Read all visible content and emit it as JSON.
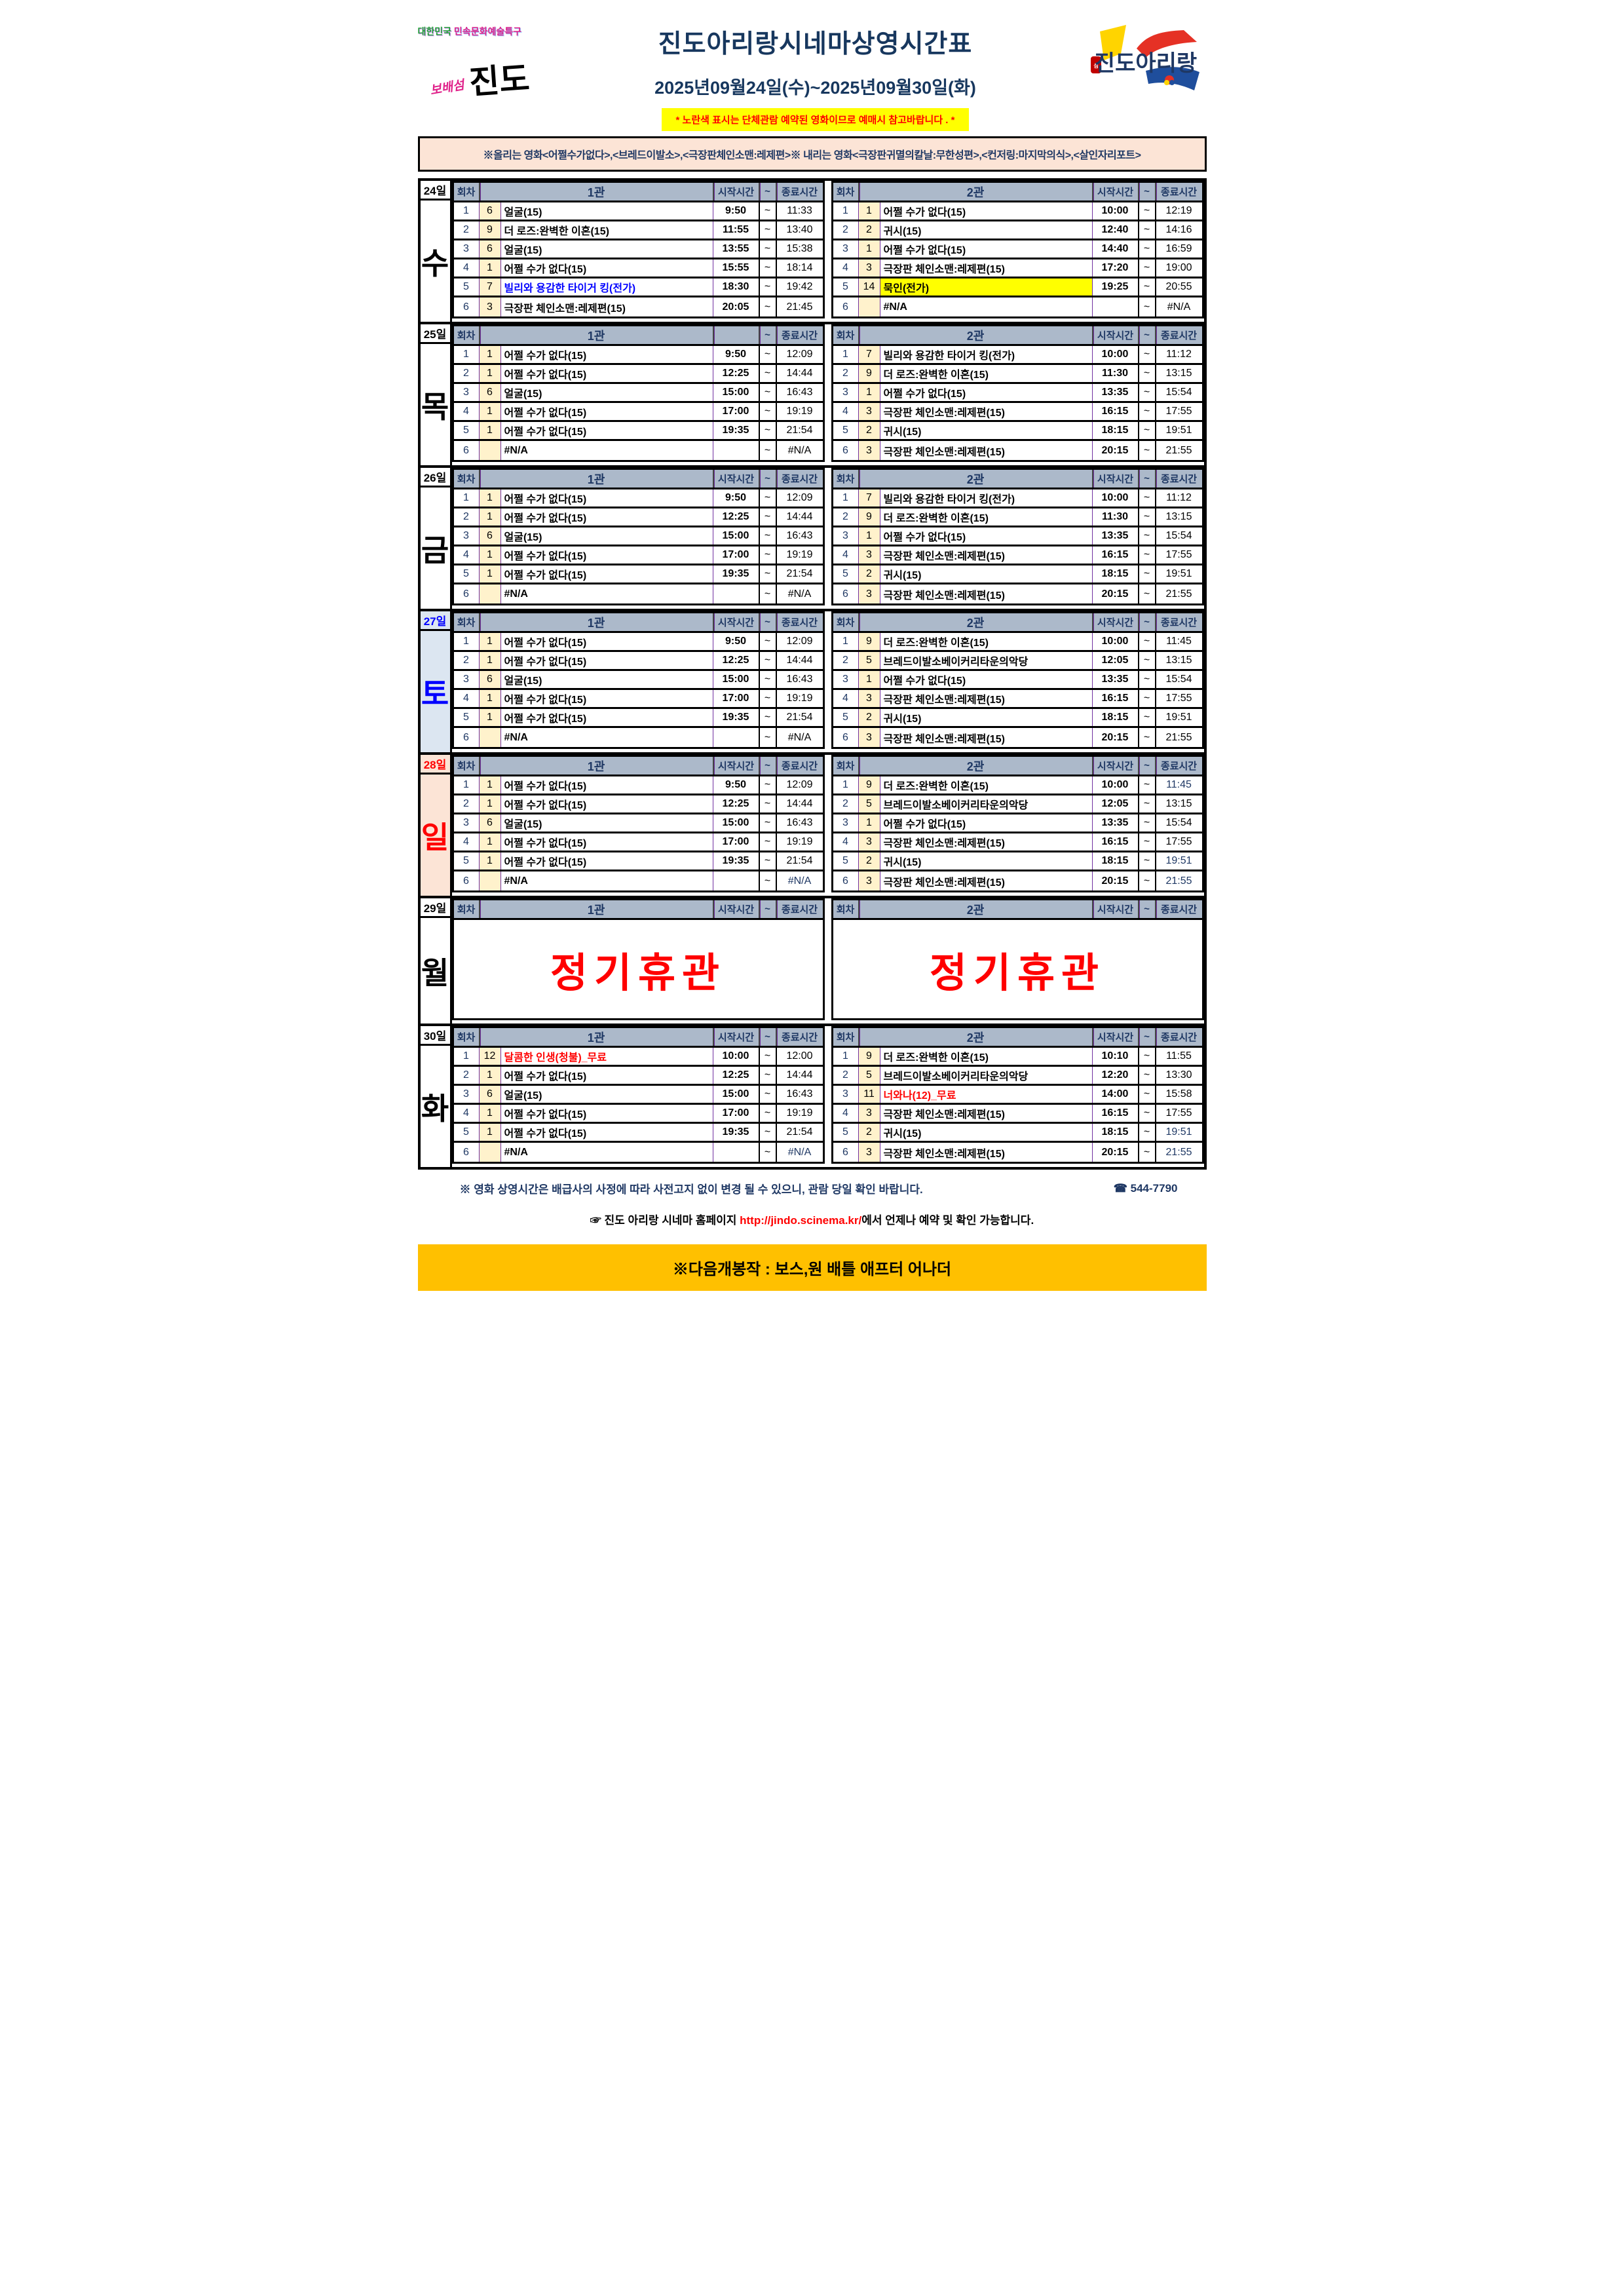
{
  "header": {
    "left_logo": {
      "line1_part1": "대한민국",
      "line1_part2": "민속문화예술특구",
      "line2_part1": "보배섬",
      "line2_part2": "진도"
    },
    "title": "진도아리랑시네마상영시간표",
    "date_range": "2025년09월24일(수)~2025년09월30일(화)",
    "yellow_notice": "* 노란색 표시는 단체관람 예약된 영화이므로 예매시 참고바랍니다 . *",
    "right_logo_text": "진도아리랑",
    "right_logo_seal": "보배섬"
  },
  "movie_notice": "※올리는 영화<어쩔수가없다>,<브레드이발소>,<극장판체인소맨:레제편>※ 내리는 영화<극장판귀멸의칼날:무한성편>,<컨저링:마지막의식>,<살인자리포트>",
  "table": {
    "col_headers": {
      "round": "회차",
      "start": "시작시간",
      "tilde": "~",
      "end": "종료시간"
    },
    "closure_text": "정기휴관",
    "days": [
      {
        "date": "24일",
        "weekday": "수",
        "date_style": "",
        "closed": false,
        "theaters": [
          {
            "name": "1관",
            "start_header": "시작시간",
            "rows": [
              {
                "no": "1",
                "code": "6",
                "title": "얼굴(15)",
                "start": "9:50",
                "end": "11:33"
              },
              {
                "no": "2",
                "code": "9",
                "title": "더 로즈:완벽한 이혼(15)",
                "start": "11:55",
                "end": "13:40"
              },
              {
                "no": "3",
                "code": "6",
                "title": "얼굴(15)",
                "start": "13:55",
                "end": "15:38"
              },
              {
                "no": "4",
                "code": "1",
                "title": "어쩔 수가 없다(15)",
                "start": "15:55",
                "end": "18:14"
              },
              {
                "no": "5",
                "code": "7",
                "title": "빌리와 용감한 타이거 킹(전가)",
                "title_style": "blue",
                "start": "18:30",
                "end": "19:42"
              },
              {
                "no": "6",
                "code": "3",
                "title": "극장판 체인소맨:레제편(15)",
                "start": "20:05",
                "end": "21:45"
              }
            ]
          },
          {
            "name": "2관",
            "start_header": "시작시간",
            "rows": [
              {
                "no": "1",
                "code": "1",
                "title": "어쩔 수가 없다(15)",
                "start": "10:00",
                "end": "12:19"
              },
              {
                "no": "2",
                "code": "2",
                "title": "귀시(15)",
                "start": "12:40",
                "end": "14:16"
              },
              {
                "no": "3",
                "code": "1",
                "title": "어쩔 수가 없다(15)",
                "start": "14:40",
                "end": "16:59"
              },
              {
                "no": "4",
                "code": "3",
                "title": "극장판 체인소맨:레제편(15)",
                "start": "17:20",
                "end": "19:00"
              },
              {
                "no": "5",
                "code": "14",
                "title": "묵인(전가)",
                "title_style": "yellowbg",
                "start": "19:25",
                "end": "20:55"
              },
              {
                "no": "6",
                "code": "",
                "title": "#N/A",
                "start": "",
                "end": "#N/A"
              }
            ]
          }
        ]
      },
      {
        "date": "25일",
        "weekday": "목",
        "date_style": "",
        "closed": false,
        "theaters": [
          {
            "name": "1관",
            "start_header": "",
            "rows": [
              {
                "no": "1",
                "code": "1",
                "title": "어쩔 수가 없다(15)",
                "start": "9:50",
                "end": "12:09"
              },
              {
                "no": "2",
                "code": "1",
                "title": "어쩔 수가 없다(15)",
                "start": "12:25",
                "end": "14:44"
              },
              {
                "no": "3",
                "code": "6",
                "title": "얼굴(15)",
                "start": "15:00",
                "end": "16:43"
              },
              {
                "no": "4",
                "code": "1",
                "title": "어쩔 수가 없다(15)",
                "start": "17:00",
                "end": "19:19"
              },
              {
                "no": "5",
                "code": "1",
                "title": "어쩔 수가 없다(15)",
                "start": "19:35",
                "end": "21:54"
              },
              {
                "no": "6",
                "code": "",
                "title": "#N/A",
                "start": "",
                "end": "#N/A"
              }
            ]
          },
          {
            "name": "2관",
            "start_header": "시작시간",
            "rows": [
              {
                "no": "1",
                "code": "7",
                "title": "빌리와 용감한 타이거 킹(전가)",
                "start": "10:00",
                "end": "11:12"
              },
              {
                "no": "2",
                "code": "9",
                "title": "더 로즈:완벽한 이혼(15)",
                "start": "11:30",
                "end": "13:15"
              },
              {
                "no": "3",
                "code": "1",
                "title": "어쩔 수가 없다(15)",
                "start": "13:35",
                "end": "15:54"
              },
              {
                "no": "4",
                "code": "3",
                "title": "극장판 체인소맨:레제편(15)",
                "start": "16:15",
                "end": "17:55"
              },
              {
                "no": "5",
                "code": "2",
                "title": "귀시(15)",
                "start": "18:15",
                "end": "19:51"
              },
              {
                "no": "6",
                "code": "3",
                "title": "극장판 체인소맨:레제편(15)",
                "start": "20:15",
                "end": "21:55"
              }
            ]
          }
        ]
      },
      {
        "date": "26일",
        "weekday": "금",
        "date_style": "",
        "closed": false,
        "theaters": [
          {
            "name": "1관",
            "start_header": "시작시간",
            "rows": [
              {
                "no": "1",
                "code": "1",
                "title": "어쩔 수가 없다(15)",
                "start": "9:50",
                "end": "12:09"
              },
              {
                "no": "2",
                "code": "1",
                "title": "어쩔 수가 없다(15)",
                "start": "12:25",
                "end": "14:44"
              },
              {
                "no": "3",
                "code": "6",
                "title": "얼굴(15)",
                "start": "15:00",
                "end": "16:43"
              },
              {
                "no": "4",
                "code": "1",
                "title": "어쩔 수가 없다(15)",
                "start": "17:00",
                "end": "19:19"
              },
              {
                "no": "5",
                "code": "1",
                "title": "어쩔 수가 없다(15)",
                "start": "19:35",
                "end": "21:54"
              },
              {
                "no": "6",
                "code": "",
                "title": "#N/A",
                "start": "",
                "end": "#N/A"
              }
            ]
          },
          {
            "name": "2관",
            "start_header": "시작시간",
            "rows": [
              {
                "no": "1",
                "code": "7",
                "title": "빌리와 용감한 타이거 킹(전가)",
                "start": "10:00",
                "end": "11:12"
              },
              {
                "no": "2",
                "code": "9",
                "title": "더 로즈:완벽한 이혼(15)",
                "start": "11:30",
                "end": "13:15"
              },
              {
                "no": "3",
                "code": "1",
                "title": "어쩔 수가 없다(15)",
                "start": "13:35",
                "end": "15:54"
              },
              {
                "no": "4",
                "code": "3",
                "title": "극장판 체인소맨:레제편(15)",
                "start": "16:15",
                "end": "17:55"
              },
              {
                "no": "5",
                "code": "2",
                "title": "귀시(15)",
                "start": "18:15",
                "end": "19:51"
              },
              {
                "no": "6",
                "code": "3",
                "title": "극장판 체인소맨:레제편(15)",
                "start": "20:15",
                "end": "21:55"
              }
            ]
          }
        ]
      },
      {
        "date": "27일",
        "weekday": "토",
        "date_style": "sat",
        "closed": false,
        "theaters": [
          {
            "name": "1관",
            "start_header": "시작시간",
            "rows": [
              {
                "no": "1",
                "code": "1",
                "title": "어쩔 수가 없다(15)",
                "start": "9:50",
                "end": "12:09"
              },
              {
                "no": "2",
                "code": "1",
                "title": "어쩔 수가 없다(15)",
                "start": "12:25",
                "end": "14:44"
              },
              {
                "no": "3",
                "code": "6",
                "title": "얼굴(15)",
                "start": "15:00",
                "end": "16:43"
              },
              {
                "no": "4",
                "code": "1",
                "title": "어쩔 수가 없다(15)",
                "start": "17:00",
                "end": "19:19"
              },
              {
                "no": "5",
                "code": "1",
                "title": "어쩔 수가 없다(15)",
                "start": "19:35",
                "end": "21:54"
              },
              {
                "no": "6",
                "code": "",
                "title": "#N/A",
                "start": "",
                "end": "#N/A"
              }
            ]
          },
          {
            "name": "2관",
            "start_header": "시작시간",
            "rows": [
              {
                "no": "1",
                "code": "9",
                "title": "더 로즈:완벽한 이혼(15)",
                "start": "10:00",
                "end": "11:45"
              },
              {
                "no": "2",
                "code": "5",
                "title": "브레드이발소베이커리타운의악당",
                "start": "12:05",
                "end": "13:15"
              },
              {
                "no": "3",
                "code": "1",
                "title": "어쩔 수가 없다(15)",
                "start": "13:35",
                "end": "15:54"
              },
              {
                "no": "4",
                "code": "3",
                "title": "극장판 체인소맨:레제편(15)",
                "start": "16:15",
                "end": "17:55"
              },
              {
                "no": "5",
                "code": "2",
                "title": "귀시(15)",
                "start": "18:15",
                "end": "19:51"
              },
              {
                "no": "6",
                "code": "3",
                "title": "극장판 체인소맨:레제편(15)",
                "start": "20:15",
                "end": "21:55"
              }
            ]
          }
        ]
      },
      {
        "date": "28일",
        "weekday": "일",
        "date_style": "sun",
        "closed": false,
        "theaters": [
          {
            "name": "1관",
            "start_header": "시작시간",
            "rows": [
              {
                "no": "1",
                "code": "1",
                "title": "어쩔 수가 없다(15)",
                "start": "9:50",
                "end": "12:09"
              },
              {
                "no": "2",
                "code": "1",
                "title": "어쩔 수가 없다(15)",
                "start": "12:25",
                "end": "14:44"
              },
              {
                "no": "3",
                "code": "6",
                "title": "얼굴(15)",
                "start": "15:00",
                "end": "16:43"
              },
              {
                "no": "4",
                "code": "1",
                "title": "어쩔 수가 없다(15)",
                "start": "17:00",
                "end": "19:19"
              },
              {
                "no": "5",
                "code": "1",
                "title": "어쩔 수가 없다(15)",
                "start": "19:35",
                "end": "21:54"
              },
              {
                "no": "6",
                "code": "",
                "title": "#N/A",
                "start": "",
                "end": "#N/A",
                "end_style": "navy"
              }
            ]
          },
          {
            "name": "2관",
            "start_header": "시작시간",
            "rows": [
              {
                "no": "1",
                "code": "9",
                "title": "더 로즈:완벽한 이혼(15)",
                "start": "10:00",
                "end": "11:45",
                "end_style": "navy"
              },
              {
                "no": "2",
                "code": "5",
                "title": "브레드이발소베이커리타운의악당",
                "start": "12:05",
                "end": "13:15"
              },
              {
                "no": "3",
                "code": "1",
                "title": "어쩔 수가 없다(15)",
                "start": "13:35",
                "end": "15:54"
              },
              {
                "no": "4",
                "code": "3",
                "title": "극장판 체인소맨:레제편(15)",
                "start": "16:15",
                "end": "17:55"
              },
              {
                "no": "5",
                "code": "2",
                "title": "귀시(15)",
                "start": "18:15",
                "end": "19:51",
                "end_style": "navy"
              },
              {
                "no": "6",
                "code": "3",
                "title": "극장판 체인소맨:레제편(15)",
                "start": "20:15",
                "end": "21:55",
                "end_style": "navy"
              }
            ]
          }
        ]
      },
      {
        "date": "29일",
        "weekday": "월",
        "date_style": "",
        "closed": true,
        "theaters": [
          {
            "name": "1관",
            "start_header": "시작시간"
          },
          {
            "name": "2관",
            "start_header": "시작시간"
          }
        ]
      },
      {
        "date": "30일",
        "weekday": "화",
        "date_style": "",
        "closed": false,
        "theaters": [
          {
            "name": "1관",
            "start_header": "시작시간",
            "rows": [
              {
                "no": "1",
                "code": "12",
                "title": "달콤한 인생(청불)_무료",
                "title_style": "red",
                "start": "10:00",
                "end": "12:00"
              },
              {
                "no": "2",
                "code": "1",
                "title": "어쩔 수가 없다(15)",
                "start": "12:25",
                "end": "14:44"
              },
              {
                "no": "3",
                "code": "6",
                "title": "얼굴(15)",
                "start": "15:00",
                "end": "16:43"
              },
              {
                "no": "4",
                "code": "1",
                "title": "어쩔 수가 없다(15)",
                "start": "17:00",
                "end": "19:19"
              },
              {
                "no": "5",
                "code": "1",
                "title": "어쩔 수가 없다(15)",
                "start": "19:35",
                "end": "21:54"
              },
              {
                "no": "6",
                "code": "",
                "title": "#N/A",
                "start": "",
                "end": "#N/A",
                "end_style": "navy"
              }
            ]
          },
          {
            "name": "2관",
            "start_header": "시작시간",
            "rows": [
              {
                "no": "1",
                "code": "9",
                "title": "더 로즈:완벽한 이혼(15)",
                "start": "10:10",
                "end": "11:55"
              },
              {
                "no": "2",
                "code": "5",
                "title": "브레드이발소베이커리타운의악당",
                "start": "12:20",
                "end": "13:30"
              },
              {
                "no": "3",
                "code": "11",
                "title": "너와나(12)_무료",
                "title_style": "red",
                "start": "14:00",
                "end": "15:58"
              },
              {
                "no": "4",
                "code": "3",
                "title": "극장판 체인소맨:레제편(15)",
                "start": "16:15",
                "end": "17:55"
              },
              {
                "no": "5",
                "code": "2",
                "title": "귀시(15)",
                "start": "18:15",
                "end": "19:51",
                "end_style": "navy"
              },
              {
                "no": "6",
                "code": "3",
                "title": "극장판 체인소맨:레제편(15)",
                "start": "20:15",
                "end": "21:55",
                "end_style": "navy"
              }
            ]
          }
        ]
      }
    ]
  },
  "footer": {
    "note1": "※ 영화 상영시간은 배급사의 사정에 따라 사전고지 없이 변경 될 수 있으니, 관람 당일 확인 바랍니다.",
    "phone": "☎ 544-7790",
    "hand_icon": "☞",
    "site_prefix": "진도 아리랑 시네마 홈페이지",
    "site_url": "http://jindo.scinema.kr/",
    "site_suffix": "에서 언제나 예약 및 확인 가능합니다.",
    "banner": "※다음개봉작 : 보스,원 배틀 애프터 어나더"
  },
  "colors": {
    "navy": "#1F3864",
    "title_navy": "#17375E",
    "header_bg": "#ACB9CA",
    "notice_bg": "#FCE4D6",
    "cream": "#FFF2CC",
    "yellow": "#FFFF00",
    "banner_orange": "#FFC000",
    "red": "#FF0000",
    "blue": "#0000FF",
    "sat_bg": "#DCE6F1",
    "sun_bg": "#FCE4D6"
  }
}
